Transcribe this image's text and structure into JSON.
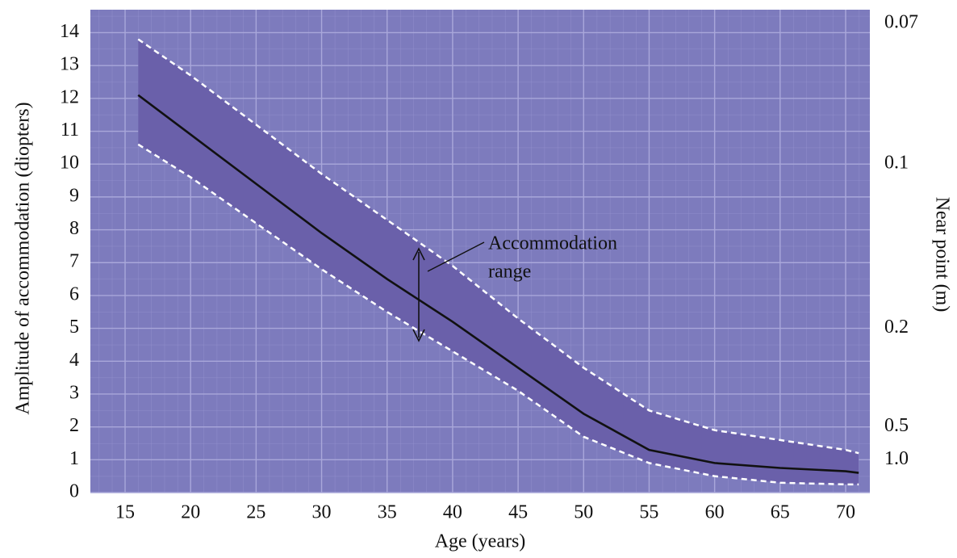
{
  "chart_data": {
    "type": "line",
    "x_label": "Age (years)",
    "y_label": "Amplitude of accommodation (diopters)",
    "y2_label": "Near point (m)",
    "y2_scale": "reciprocal",
    "x": [
      16,
      20,
      25,
      30,
      35,
      40,
      45,
      50,
      55,
      60,
      65,
      70,
      71
    ],
    "series": [
      {
        "color": "#111111",
        "style": "solid",
        "values": [
          12.1,
          10.9,
          9.4,
          7.9,
          6.5,
          5.2,
          3.8,
          2.4,
          1.3,
          0.9,
          0.75,
          0.65,
          0.6
        ]
      },
      {
        "color": "#ffffff",
        "style": "dashed",
        "values": [
          13.8,
          12.7,
          11.2,
          9.7,
          8.3,
          6.9,
          5.3,
          3.8,
          2.5,
          1.9,
          1.6,
          1.3,
          1.2
        ]
      },
      {
        "color": "#ffffff",
        "style": "dashed",
        "values": [
          10.6,
          9.6,
          8.2,
          6.8,
          5.5,
          4.3,
          3.1,
          1.7,
          0.9,
          0.5,
          0.3,
          0.25,
          0.25
        ]
      }
    ],
    "band_color": "#6a60aa",
    "background": "#7d7bbd",
    "xlim": [
      12.35,
      71.85
    ],
    "xticks": [
      15,
      20,
      25,
      30,
      35,
      40,
      45,
      50,
      55,
      60,
      65,
      70
    ],
    "ylim": [
      0,
      14.7
    ],
    "yticks": [
      0,
      1,
      2,
      3,
      4,
      5,
      6,
      7,
      8,
      9,
      10,
      11,
      12,
      13,
      14
    ],
    "y2ticks": [
      0.07,
      0.1,
      0.2,
      0.5,
      {
        "value": 1,
        "label": "1.0"
      }
    ],
    "grid": true,
    "annotation": [
      "Accommodation",
      "range"
    ]
  }
}
